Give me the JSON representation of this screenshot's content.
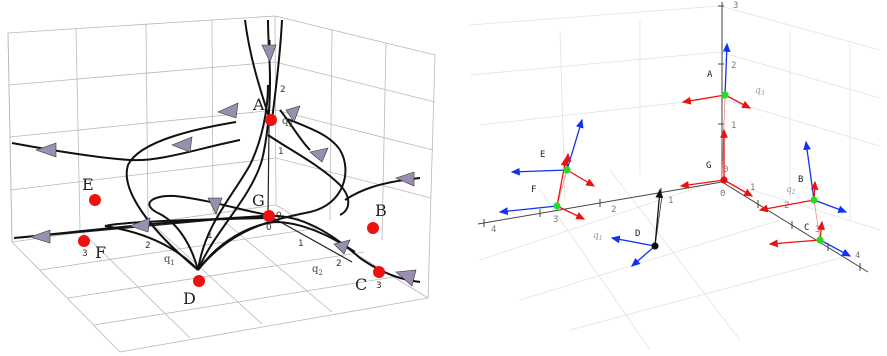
{
  "left_panel": {
    "points": [
      {
        "id": "A",
        "label": "A"
      },
      {
        "id": "B",
        "label": "B"
      },
      {
        "id": "C",
        "label": "C"
      },
      {
        "id": "D",
        "label": "D"
      },
      {
        "id": "E",
        "label": "E"
      },
      {
        "id": "F",
        "label": "F"
      },
      {
        "id": "G",
        "label": "G"
      }
    ],
    "axis_labels": {
      "q1": "q",
      "q1_sub": "1",
      "q2": "q",
      "q2_sub": "2",
      "q3": "q",
      "q3_sub": "3"
    },
    "ticks": {
      "q3": [
        "2",
        "1",
        "0"
      ],
      "q1": [
        "3",
        "2",
        "1",
        "0"
      ],
      "q2": [
        "1",
        "2",
        "3"
      ]
    },
    "colors": {
      "point": "#ee1111",
      "trajectory": "#111111",
      "arrow_fill": "#9a8fb0",
      "grid": "#b8b8b8"
    }
  },
  "right_panel": {
    "points": [
      {
        "id": "A",
        "label": "A",
        "color": "#22dd22"
      },
      {
        "id": "B",
        "label": "B",
        "color": "#22dd22"
      },
      {
        "id": "C",
        "label": "C",
        "color": "#22dd22"
      },
      {
        "id": "D",
        "label": "D",
        "color": "#111111"
      },
      {
        "id": "E",
        "label": "E",
        "color": "#22dd22"
      },
      {
        "id": "F",
        "label": "F",
        "color": "#22dd22"
      },
      {
        "id": "G",
        "label": "G",
        "color": "#dd1111"
      }
    ],
    "axis_labels": {
      "q1": "q",
      "q1_sub": "1",
      "q2": "q",
      "q2_sub": "2",
      "q3": "q",
      "q3_sub": "3"
    },
    "ticks": {
      "q3": [
        "3",
        "2",
        "1",
        "0"
      ],
      "q1": [
        "4",
        "3",
        "2",
        "1"
      ],
      "q2": [
        "0",
        "1",
        "2",
        "3",
        "4"
      ]
    },
    "colors": {
      "red_vector": "#ee1111",
      "blue_vector": "#1133ee",
      "axis": "#444444",
      "grid": "#e2e2e2"
    }
  }
}
